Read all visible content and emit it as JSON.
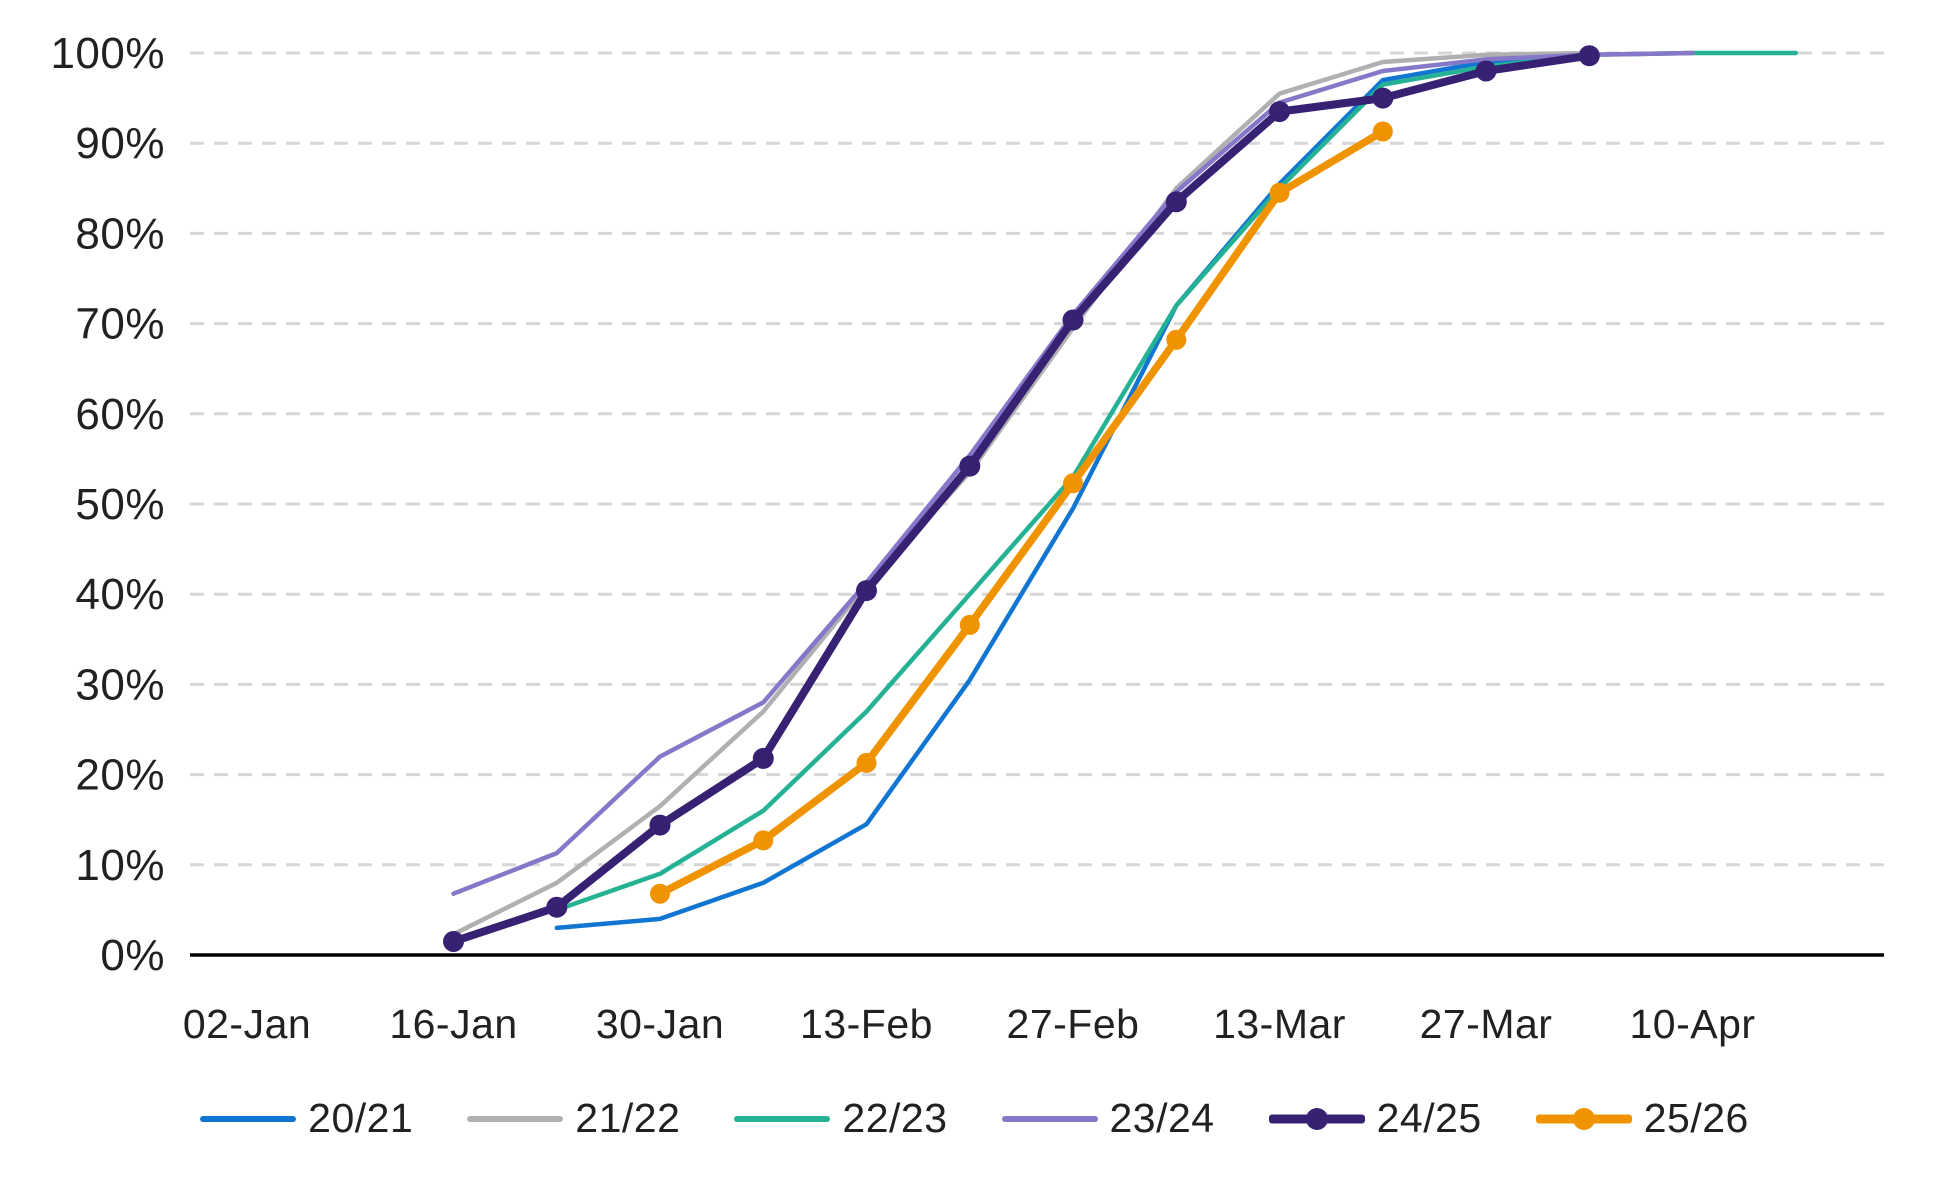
{
  "chart_data": {
    "type": "line",
    "title": "",
    "xlabel": "",
    "ylabel": "",
    "ylim": [
      0,
      100
    ],
    "y_tick_labels": [
      "0%",
      "10%",
      "20%",
      "30%",
      "40%",
      "50%",
      "60%",
      "70%",
      "80%",
      "90%",
      "100%"
    ],
    "x_tick_labels": [
      "02-Jan",
      "16-Jan",
      "30-Jan",
      "13-Feb",
      "27-Feb",
      "13-Mar",
      "27-Mar",
      "10-Apr"
    ],
    "grid": "horizontal-dashed",
    "legend_position": "bottom",
    "axis_color": "#000000",
    "gridline_color": "#d6d6d6",
    "text_color": "#212121",
    "series": [
      {
        "name": "20/21",
        "color": "#1175D2",
        "line_width": 4.5,
        "markers": false,
        "points": [
          [
            "23-Jan",
            3.0
          ],
          [
            "30-Jan",
            4.0
          ],
          [
            "06-Feb",
            8.0
          ],
          [
            "13-Feb",
            14.5
          ],
          [
            "20-Feb",
            30.5
          ],
          [
            "27-Feb",
            49.5
          ],
          [
            "06-Mar",
            72.0
          ],
          [
            "13-Mar",
            85.5
          ],
          [
            "20-Mar",
            97.0
          ],
          [
            "27-Mar",
            99.0
          ],
          [
            "03-Apr",
            100.0
          ]
        ]
      },
      {
        "name": "21/22",
        "color": "#B0B0B2",
        "line_width": 4.5,
        "markers": false,
        "points": [
          [
            "16-Jan",
            2.3
          ],
          [
            "23-Jan",
            8.0
          ],
          [
            "30-Jan",
            16.5
          ],
          [
            "06-Feb",
            27.0
          ],
          [
            "13-Feb",
            41.0
          ],
          [
            "20-Feb",
            53.5
          ],
          [
            "27-Feb",
            69.5
          ],
          [
            "06-Mar",
            85.0
          ],
          [
            "13-Mar",
            95.5
          ],
          [
            "20-Mar",
            99.0
          ],
          [
            "27-Mar",
            99.8
          ],
          [
            "03-Apr",
            100.0
          ]
        ]
      },
      {
        "name": "22/23",
        "color": "#25B294",
        "line_width": 4.5,
        "markers": false,
        "points": [
          [
            "23-Jan",
            5.0
          ],
          [
            "30-Jan",
            9.0
          ],
          [
            "06-Feb",
            16.0
          ],
          [
            "13-Feb",
            27.0
          ],
          [
            "20-Feb",
            40.0
          ],
          [
            "27-Feb",
            53.0
          ],
          [
            "06-Mar",
            72.0
          ],
          [
            "13-Mar",
            85.0
          ],
          [
            "20-Mar",
            96.5
          ],
          [
            "27-Mar",
            98.5
          ],
          [
            "03-Apr",
            99.8
          ],
          [
            "10-Apr",
            100.0
          ],
          [
            "17-Apr",
            100.0
          ]
        ]
      },
      {
        "name": "23/24",
        "color": "#8677C8",
        "line_width": 4.5,
        "markers": false,
        "points": [
          [
            "16-Jan",
            6.8
          ],
          [
            "23-Jan",
            11.3
          ],
          [
            "30-Jan",
            22.0
          ],
          [
            "06-Feb",
            28.0
          ],
          [
            "13-Feb",
            41.3
          ],
          [
            "20-Feb",
            55.4
          ],
          [
            "27-Feb",
            71.0
          ],
          [
            "06-Mar",
            84.6
          ],
          [
            "13-Mar",
            94.5
          ],
          [
            "20-Mar",
            98.0
          ],
          [
            "27-Mar",
            99.3
          ],
          [
            "03-Apr",
            99.8
          ],
          [
            "10-Apr",
            100.0
          ]
        ]
      },
      {
        "name": "24/25",
        "color": "#372173",
        "line_width": 8,
        "markers": true,
        "marker_radius": 10.5,
        "points": [
          [
            "16-Jan",
            1.5
          ],
          [
            "23-Jan",
            5.3
          ],
          [
            "30-Jan",
            14.4
          ],
          [
            "06-Feb",
            21.8
          ],
          [
            "13-Feb",
            40.4
          ],
          [
            "20-Feb",
            54.2
          ],
          [
            "27-Feb",
            70.4
          ],
          [
            "06-Mar",
            83.5
          ],
          [
            "13-Mar",
            93.5
          ],
          [
            "20-Mar",
            95.0
          ],
          [
            "27-Mar",
            98.0
          ],
          [
            "03-Apr",
            99.7
          ]
        ]
      },
      {
        "name": "25/26",
        "color": "#F09300",
        "line_width": 7.5,
        "markers": true,
        "marker_radius": 10,
        "points": [
          [
            "30-Jan",
            6.8
          ],
          [
            "06-Feb",
            12.7
          ],
          [
            "13-Feb",
            21.3
          ],
          [
            "20-Feb",
            36.6
          ],
          [
            "27-Feb",
            52.3
          ],
          [
            "06-Mar",
            68.2
          ],
          [
            "13-Mar",
            84.5
          ],
          [
            "20-Mar",
            91.3
          ]
        ]
      }
    ]
  }
}
